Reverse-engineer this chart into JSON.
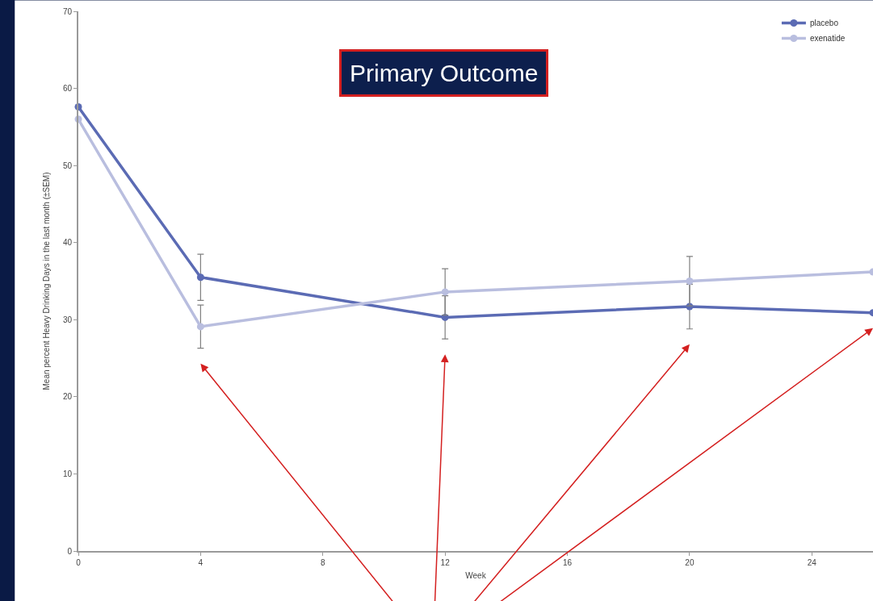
{
  "chart_data": {
    "type": "line",
    "title": "Primary Outcome",
    "xlabel": "Week",
    "ylabel": "Mean percent Heavy Drinking Days in the last month (±SEM)",
    "x": [
      0,
      4,
      12,
      20,
      26
    ],
    "series": [
      {
        "name": "placebo",
        "color": "#5b6bb4",
        "values": [
          57.6,
          35.5,
          30.3,
          31.7,
          30.9
        ],
        "errors": [
          null,
          3,
          2.8,
          2.9,
          null
        ]
      },
      {
        "name": "exenatide",
        "color": "#b9bedf",
        "values": [
          56.0,
          29.1,
          33.6,
          35.0,
          36.2
        ],
        "errors": [
          null,
          2.8,
          3,
          3.2,
          null
        ]
      }
    ],
    "xlim": [
      0,
      26
    ],
    "xticks": [
      0,
      4,
      8,
      12,
      16,
      20,
      24
    ],
    "ylim": [
      0,
      70
    ],
    "yticks": [
      0,
      10,
      20,
      30,
      40,
      50,
      60,
      70
    ],
    "legend": "top right",
    "marker": "circle",
    "line_style": "solid"
  }
}
